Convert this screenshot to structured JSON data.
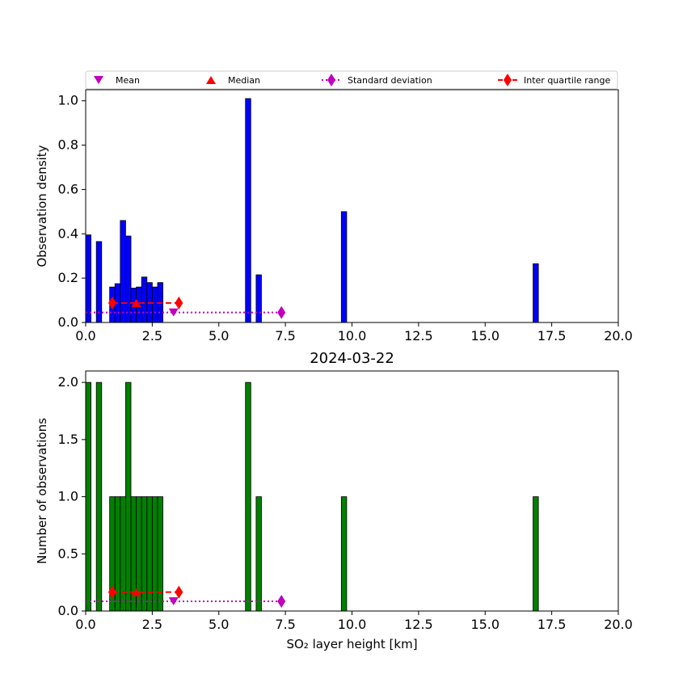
{
  "legend": {
    "items": [
      {
        "label": "Mean",
        "marker": "triangle-down",
        "color": "#bf00bf"
      },
      {
        "label": "Median",
        "marker": "triangle-up",
        "color": "#ff0000"
      },
      {
        "label": "Standard deviation",
        "marker": "diamond",
        "color": "#bf00bf",
        "line": "dotted"
      },
      {
        "label": "Inter quartile range",
        "marker": "diamond",
        "color": "#ff0000",
        "line": "dashed"
      }
    ],
    "placement": "top"
  },
  "chart_data": [
    {
      "type": "bar",
      "title": "",
      "xlabel": "",
      "ylabel": "Observation density",
      "xlim": [
        0,
        20
      ],
      "ylim": [
        0,
        1.05
      ],
      "xticks": [
        "0.0",
        "2.5",
        "5.0",
        "7.5",
        "10.0",
        "12.5",
        "15.0",
        "17.5",
        "20.0"
      ],
      "yticks": [
        "0.0",
        "0.2",
        "0.4",
        "0.6",
        "0.8",
        "1.0"
      ],
      "bar_color": "#0000ff",
      "bar_width": 0.2,
      "bars": [
        {
          "x": 0.1,
          "value": 0.395
        },
        {
          "x": 0.5,
          "value": 0.365
        },
        {
          "x": 1.0,
          "value": 0.16
        },
        {
          "x": 1.2,
          "value": 0.175
        },
        {
          "x": 1.4,
          "value": 0.46
        },
        {
          "x": 1.6,
          "value": 0.39
        },
        {
          "x": 1.8,
          "value": 0.155
        },
        {
          "x": 2.0,
          "value": 0.16
        },
        {
          "x": 2.2,
          "value": 0.205
        },
        {
          "x": 2.4,
          "value": 0.18
        },
        {
          "x": 2.6,
          "value": 0.16
        },
        {
          "x": 2.8,
          "value": 0.18
        },
        {
          "x": 6.1,
          "value": 1.01
        },
        {
          "x": 6.5,
          "value": 0.215
        },
        {
          "x": 9.7,
          "value": 0.5
        },
        {
          "x": 16.9,
          "value": 0.265
        }
      ],
      "stats": {
        "mean": {
          "x": 3.3,
          "y": 0.045
        },
        "median": {
          "x": 1.9,
          "y": 0.088
        },
        "std_range": {
          "x": [
            0.0,
            7.35
          ],
          "y": 0.045
        },
        "iqr_range": {
          "x": [
            1.0,
            3.5
          ],
          "y": 0.088
        }
      }
    },
    {
      "type": "bar",
      "title": "2024-03-22",
      "xlabel": "SO₂ layer height [km]",
      "ylabel": "Number of observations",
      "xlim": [
        0,
        20
      ],
      "ylim": [
        0,
        2.1
      ],
      "xticks": [
        "0.0",
        "2.5",
        "5.0",
        "7.5",
        "10.0",
        "12.5",
        "15.0",
        "17.5",
        "20.0"
      ],
      "yticks": [
        "0.0",
        "0.5",
        "1.0",
        "1.5",
        "2.0"
      ],
      "bar_color": "#008000",
      "bar_width": 0.2,
      "bars": [
        {
          "x": 0.1,
          "value": 2
        },
        {
          "x": 0.5,
          "value": 2
        },
        {
          "x": 1.0,
          "value": 1
        },
        {
          "x": 1.2,
          "value": 1
        },
        {
          "x": 1.4,
          "value": 1
        },
        {
          "x": 1.6,
          "value": 2
        },
        {
          "x": 1.8,
          "value": 1
        },
        {
          "x": 2.0,
          "value": 1
        },
        {
          "x": 2.2,
          "value": 1
        },
        {
          "x": 2.4,
          "value": 1
        },
        {
          "x": 2.6,
          "value": 1
        },
        {
          "x": 2.8,
          "value": 1
        },
        {
          "x": 6.1,
          "value": 2
        },
        {
          "x": 6.5,
          "value": 1
        },
        {
          "x": 9.7,
          "value": 1
        },
        {
          "x": 16.9,
          "value": 1
        }
      ],
      "stats": {
        "mean": {
          "x": 3.3,
          "y": 0.085
        },
        "median": {
          "x": 1.9,
          "y": 0.165
        },
        "std_range": {
          "x": [
            0.0,
            7.35
          ],
          "y": 0.085
        },
        "iqr_range": {
          "x": [
            1.0,
            3.5
          ],
          "y": 0.165
        }
      }
    }
  ]
}
